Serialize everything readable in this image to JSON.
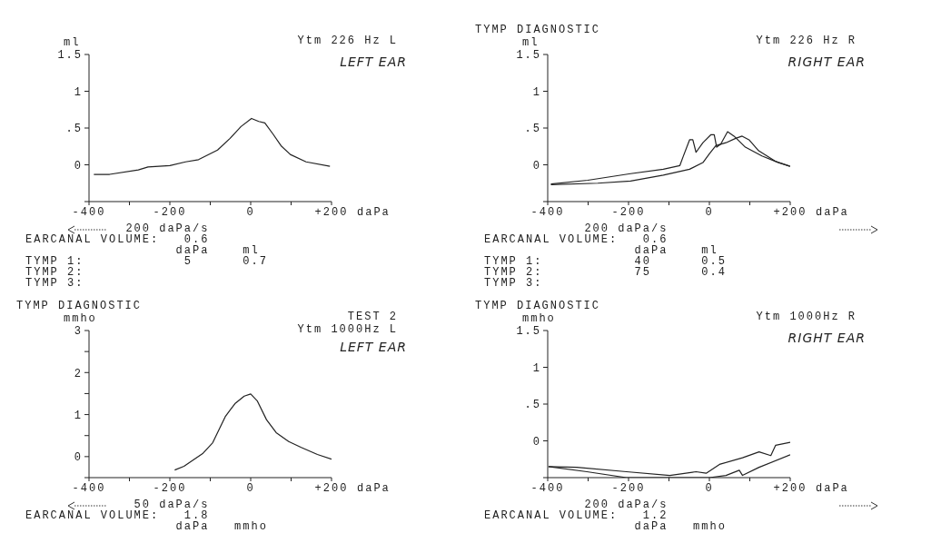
{
  "chart_data": [
    {
      "type": "line",
      "subtitle": "Ytm 226 Hz L",
      "ylabel": "ml",
      "xlabel": "daPa",
      "xlim": [
        -400,
        200
      ],
      "xticks": [
        -400,
        {
          "value": -300,
          "label": null
        },
        -200,
        {
          "value": -100,
          "label": null
        },
        0,
        {
          "value": 100,
          "label": null
        },
        {
          "value": 200,
          "label": "+200"
        }
      ],
      "ylim": [
        -0.5,
        1.5
      ],
      "yticks": [
        {
          "value": -0.5,
          "label": null
        },
        0,
        {
          "value": 0.5,
          "label": ".5"
        },
        1,
        1.5
      ],
      "annotations": [
        "LEFT EAR",
        "            200 daPa/s",
        "EARCANAL VOLUME:   0.6",
        "                  daPa    ml",
        "TYMP 1:            5      0.7",
        "TYMP 2:",
        "TYMP 3:"
      ],
      "series": [
        {
          "color": "#222222",
          "x": [
            -388,
            -349,
            -278,
            -254,
            -200,
            -161,
            -129,
            -82,
            -51,
            -24,
            2,
            20,
            35,
            55,
            75,
            98,
            137,
            196
          ],
          "values": [
            -0.13,
            -0.13,
            -0.07,
            -0.03,
            -0.01,
            0.04,
            0.07,
            0.2,
            0.36,
            0.52,
            0.63,
            0.59,
            0.57,
            0.42,
            0.26,
            0.14,
            0.04,
            -0.02
          ]
        }
      ]
    },
    {
      "type": "line",
      "title": "TYMP DIAGNOSTIC",
      "subtitle": "Ytm 226 Hz R",
      "ylabel": "ml",
      "xlabel": "daPa",
      "xlim": [
        -400,
        200
      ],
      "xticks": [
        -400,
        {
          "value": -300,
          "label": null
        },
        -200,
        {
          "value": -100,
          "label": null
        },
        0,
        {
          "value": 100,
          "label": null
        },
        {
          "value": 200,
          "label": "+200"
        }
      ],
      "ylim": [
        -0.5,
        1.5
      ],
      "yticks": [
        {
          "value": -0.5,
          "label": null
        },
        0,
        {
          "value": 0.5,
          "label": ".5"
        },
        1,
        1.5
      ],
      "annotations": [
        "RIGHT EAR",
        "            200 daPa/s",
        "EARCANAL VOLUME:   0.6",
        "                  daPa    ml",
        "TYMP 1:           40      0.5",
        "TYMP 2:           75      0.4",
        "TYMP 3:"
      ],
      "series": [
        {
          "color": "#222222",
          "x": [
            -392,
            -301,
            -195,
            -114,
            -73,
            -65,
            -49,
            -41,
            -33,
            -16,
            4,
            12,
            18,
            28,
            45,
            61,
            89,
            130,
            171,
            200
          ],
          "values": [
            -0.26,
            -0.21,
            -0.12,
            -0.06,
            -0.01,
            0.11,
            0.34,
            0.34,
            0.17,
            0.3,
            0.41,
            0.41,
            0.24,
            0.28,
            0.45,
            0.39,
            0.24,
            0.12,
            0.03,
            -0.02
          ]
        },
        {
          "color": "#222222",
          "x": [
            -392,
            -276,
            -195,
            -114,
            -49,
            -16,
            0,
            16,
            41,
            65,
            81,
            98,
            122,
            163,
            199
          ],
          "values": [
            -0.27,
            -0.25,
            -0.22,
            -0.14,
            -0.06,
            0.03,
            0.15,
            0.26,
            0.3,
            0.36,
            0.39,
            0.34,
            0.19,
            0.05,
            -0.02
          ]
        }
      ]
    },
    {
      "type": "line",
      "title": "TYMP DIAGNOSTIC",
      "subtitle": "TEST 2\nYtm 1000Hz L",
      "ylabel": "mmho",
      "xlabel": "daPa",
      "xlim": [
        -400,
        200
      ],
      "xticks": [
        -400,
        {
          "value": -300,
          "label": null
        },
        -200,
        {
          "value": -100,
          "label": null
        },
        0,
        {
          "value": 100,
          "label": null
        },
        {
          "value": 200,
          "label": "+200"
        }
      ],
      "ylim": [
        -0.5,
        3
      ],
      "yticks": [
        {
          "value": -0.5,
          "label": null
        },
        0,
        {
          "value": 0.5,
          "label": null
        },
        1,
        {
          "value": 1.5,
          "label": null
        },
        2,
        {
          "value": 2.5,
          "label": null
        },
        3
      ],
      "annotations": [
        "LEFT EAR",
        "             50 daPa/s",
        "EARCANAL VOLUME:   1.8",
        "                  daPa   mmho"
      ],
      "series": [
        {
          "color": "#222222",
          "x": [
            -188,
            -165,
            -118,
            -94,
            -63,
            -39,
            -16,
            0,
            16,
            39,
            63,
            94,
            125,
            165,
            200
          ],
          "values": [
            -0.32,
            -0.23,
            0.08,
            0.33,
            0.95,
            1.26,
            1.44,
            1.49,
            1.33,
            0.88,
            0.57,
            0.36,
            0.22,
            0.05,
            -0.06
          ]
        }
      ]
    },
    {
      "type": "line",
      "title": "TYMP DIAGNOSTIC",
      "subtitle": "Ytm 1000Hz R",
      "ylabel": "mmho",
      "xlabel": "daPa",
      "xlim": [
        -400,
        200
      ],
      "xticks": [
        -400,
        {
          "value": -300,
          "label": null
        },
        -200,
        {
          "value": -100,
          "label": null
        },
        0,
        {
          "value": 100,
          "label": null
        },
        {
          "value": 200,
          "label": "+200"
        }
      ],
      "ylim": [
        -0.5,
        1.5
      ],
      "yticks": [
        {
          "value": -0.5,
          "label": null
        },
        0,
        {
          "value": 0.5,
          "label": ".5"
        },
        1,
        1.5
      ],
      "annotations": [
        "RIGHT EAR",
        "            200 daPa/s",
        "EARCANAL VOLUME:   1.2",
        "                  daPa   mmho"
      ],
      "series": [
        {
          "color": "#222222",
          "x": [
            -398,
            -328,
            -205,
            -98,
            -33,
            -8,
            25,
            82,
            123,
            152,
            164,
            200
          ],
          "values": [
            -0.35,
            -0.36,
            -0.42,
            -0.47,
            -0.42,
            -0.44,
            -0.32,
            -0.23,
            -0.15,
            -0.2,
            -0.06,
            -0.02
          ]
        },
        {
          "color": "#222222",
          "x": [
            -398,
            -303,
            -205,
            -82,
            0,
            41,
            74,
            82,
            123,
            200
          ],
          "values": [
            -0.35,
            -0.42,
            -0.5,
            -0.5,
            -0.5,
            -0.47,
            -0.4,
            -0.47,
            -0.36,
            -0.19
          ]
        }
      ]
    }
  ]
}
